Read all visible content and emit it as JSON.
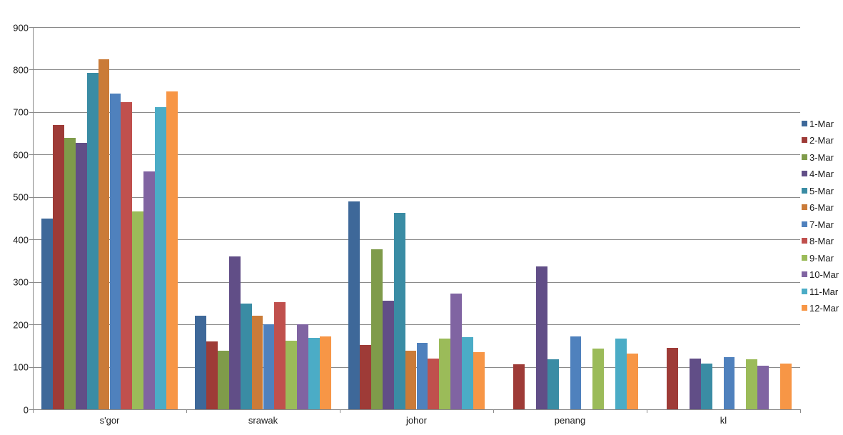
{
  "chart_data": {
    "type": "bar",
    "title": "",
    "xlabel": "",
    "ylabel": "",
    "categories": [
      "s'gor",
      "srawak",
      "johor",
      "penang",
      "kl"
    ],
    "series": [
      {
        "name": "1-Mar",
        "color": "#3E6899",
        "values": [
          450,
          220,
          490,
          null,
          null
        ]
      },
      {
        "name": "2-Mar",
        "color": "#9E3B37",
        "values": [
          670,
          159,
          152,
          106,
          144
        ]
      },
      {
        "name": "3-Mar",
        "color": "#7F9B4A",
        "values": [
          639,
          138,
          376,
          null,
          null
        ]
      },
      {
        "name": "4-Mar",
        "color": "#614E87",
        "values": [
          628,
          360,
          255,
          336,
          119
        ]
      },
      {
        "name": "5-Mar",
        "color": "#3A8CA4",
        "values": [
          793,
          249,
          462,
          117,
          107
        ]
      },
      {
        "name": "6-Mar",
        "color": "#CA7B38",
        "values": [
          825,
          221,
          138,
          null,
          null
        ]
      },
      {
        "name": "7-Mar",
        "color": "#4F81BD",
        "values": [
          744,
          200,
          156,
          171,
          123
        ]
      },
      {
        "name": "8-Mar",
        "color": "#C0504D",
        "values": [
          724,
          252,
          120,
          null,
          null
        ]
      },
      {
        "name": "9-Mar",
        "color": "#9BBB59",
        "values": [
          466,
          162,
          166,
          143,
          117
        ]
      },
      {
        "name": "10-Mar",
        "color": "#8064A2",
        "values": [
          560,
          200,
          273,
          null,
          102
        ]
      },
      {
        "name": "11-Mar",
        "color": "#4BACC6",
        "values": [
          711,
          168,
          170,
          167,
          null
        ]
      },
      {
        "name": "12-Mar",
        "color": "#F79646",
        "values": [
          748,
          172,
          135,
          132,
          107
        ]
      }
    ],
    "y_axis": {
      "min": 0,
      "max": 900,
      "step": 100,
      "ticks": [
        "0",
        "100",
        "200",
        "300",
        "400",
        "500",
        "600",
        "700",
        "800",
        "900"
      ]
    },
    "legend": {
      "position": "right"
    },
    "grid": true,
    "colors": {
      "grid": "#8A8A8A",
      "axis": "#8A8A8A",
      "text": "#1A1A1A",
      "background": "#FFFFFF"
    }
  }
}
